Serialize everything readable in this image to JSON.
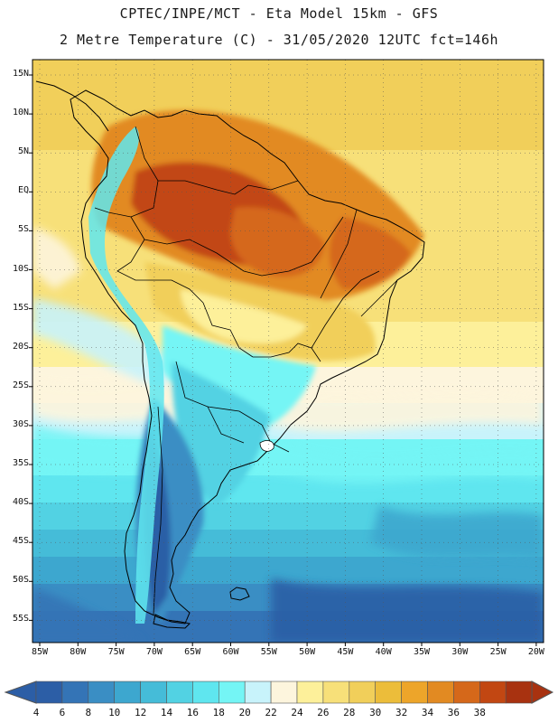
{
  "header": {
    "line1": "CPTEC/INPE/MCT -  Eta Model 15km - GFS",
    "line2": "2 Metre Temperature (C) - 31/05/2020 12UTC fct=146h"
  },
  "map": {
    "region": "South America",
    "variable": "2 Metre Temperature",
    "units": "C",
    "lat_labels": [
      "15N",
      "10N",
      "5N",
      "EQ",
      "5S",
      "10S",
      "15S",
      "20S",
      "25S",
      "30S",
      "35S",
      "40S",
      "45S",
      "50S",
      "55S"
    ],
    "lon_labels": [
      "85W",
      "80W",
      "75W",
      "70W",
      "65W",
      "60W",
      "55W",
      "50W",
      "45W",
      "40W",
      "35W",
      "30W",
      "25W",
      "20W"
    ]
  },
  "colorbar": {
    "labels": [
      "4",
      "6",
      "8",
      "10",
      "12",
      "14",
      "16",
      "18",
      "20",
      "22",
      "24",
      "26",
      "28",
      "30",
      "32",
      "34",
      "36",
      "38"
    ],
    "colors": [
      "#2c5ea6",
      "#3474b6",
      "#3a8ec4",
      "#3da7cf",
      "#45bcd8",
      "#52d2e3",
      "#5fe6ef",
      "#74f5f5",
      "#c8f3fb",
      "#fdf5dd",
      "#fdf09a",
      "#f7e079",
      "#f1cf5a",
      "#ecbd3a",
      "#eda52a",
      "#e28a22",
      "#d5681a",
      "#c24712",
      "#a83210"
    ],
    "left_arrow": "#2c5ea6",
    "right_arrow": "#a83210"
  }
}
